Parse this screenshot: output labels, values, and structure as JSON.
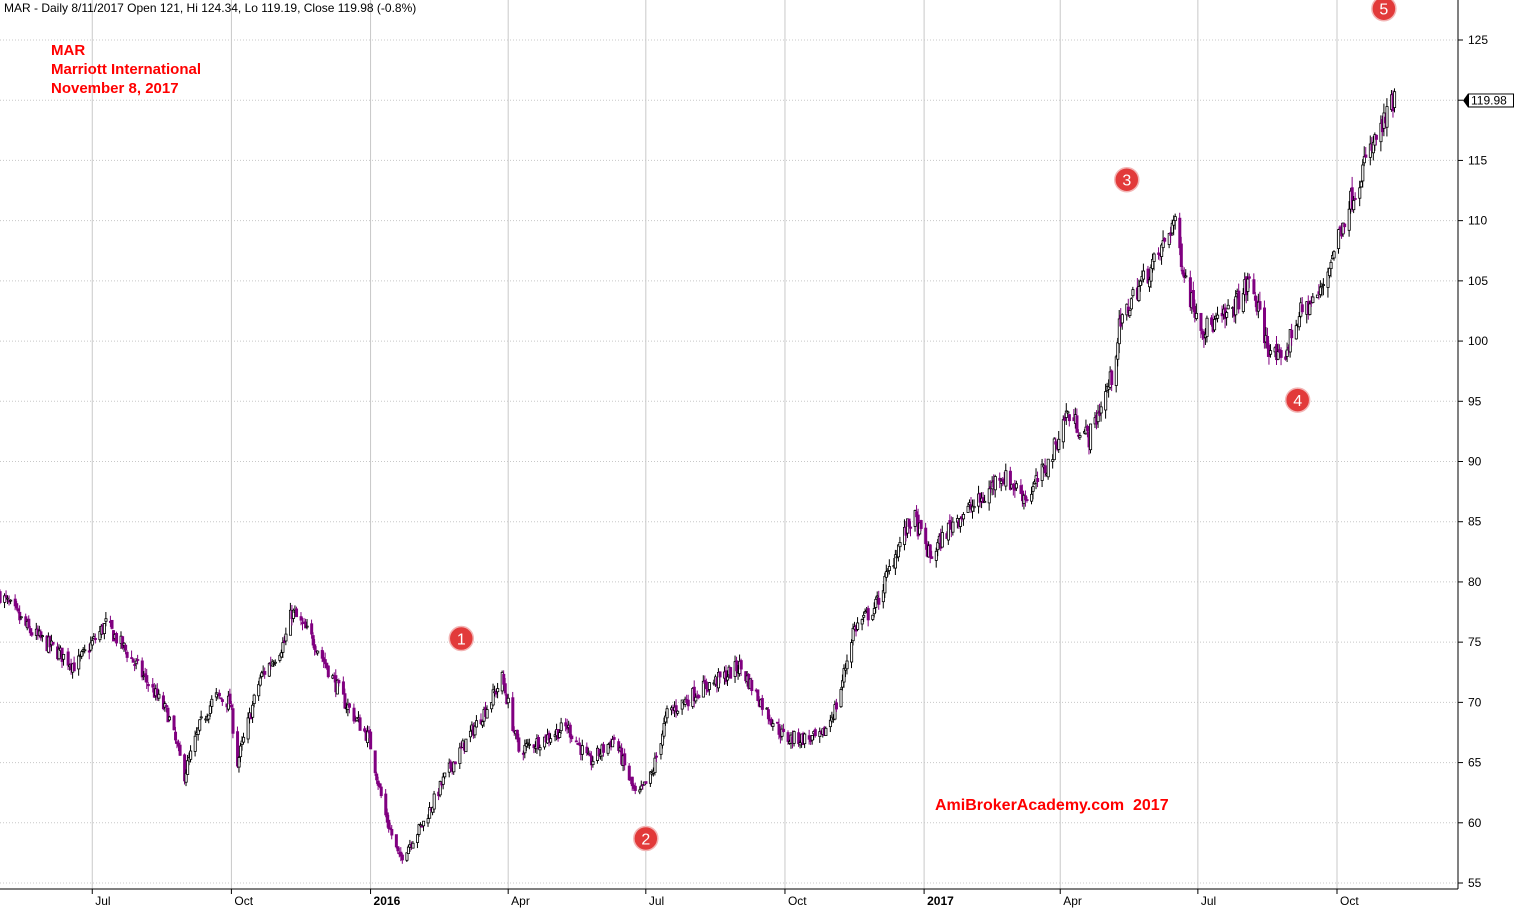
{
  "header": {
    "info_line": "MAR - Daily 8/11/2017 Open 121, Hi 124.34, Lo 119.19, Close 119.98 (-0.8%)"
  },
  "title_block": {
    "symbol": "MAR",
    "company": "Marriott International",
    "date": "November 8, 2017"
  },
  "watermark": "AmiBrokerAcademy.com  2017",
  "colors": {
    "up_bar": "#000000",
    "down_bar": "#800080",
    "grid": "#c8c8c8",
    "marker": "#e23a3a",
    "title_text": "#ff0000"
  },
  "chart_data": {
    "type": "candlestick",
    "symbol": "MAR",
    "last_close": "119.98",
    "ylim": [
      55,
      127
    ],
    "yticks": [
      55,
      60,
      65,
      70,
      75,
      80,
      85,
      90,
      95,
      100,
      105,
      110,
      115,
      120,
      125
    ],
    "x_range": [
      "2015-05-01",
      "2017-12-20"
    ],
    "xticks": [
      {
        "date": "2015-07-01",
        "label": "Jul",
        "bold": false
      },
      {
        "date": "2015-10-01",
        "label": "Oct",
        "bold": false
      },
      {
        "date": "2016-01-01",
        "label": "2016",
        "bold": true
      },
      {
        "date": "2016-04-01",
        "label": "Apr",
        "bold": false
      },
      {
        "date": "2016-07-01",
        "label": "Jul",
        "bold": false
      },
      {
        "date": "2016-10-01",
        "label": "Oct",
        "bold": false
      },
      {
        "date": "2017-01-01",
        "label": "2017",
        "bold": true
      },
      {
        "date": "2017-04-01",
        "label": "Apr",
        "bold": false
      },
      {
        "date": "2017-07-01",
        "label": "Jul",
        "bold": false
      },
      {
        "date": "2017-10-01",
        "label": "Oct",
        "bold": false
      }
    ],
    "grid": true,
    "price_path": [
      [
        "2015-05-01",
        79
      ],
      [
        "2015-05-20",
        76
      ],
      [
        "2015-06-10",
        74
      ],
      [
        "2015-06-20",
        73
      ],
      [
        "2015-07-10",
        76.5
      ],
      [
        "2015-07-25",
        74
      ],
      [
        "2015-08-10",
        71
      ],
      [
        "2015-08-20",
        69
      ],
      [
        "2015-08-31",
        64
      ],
      [
        "2015-09-10",
        68
      ],
      [
        "2015-09-20",
        70.5
      ],
      [
        "2015-09-30",
        70
      ],
      [
        "2015-10-05",
        65
      ],
      [
        "2015-10-20",
        72
      ],
      [
        "2015-11-05",
        75
      ],
      [
        "2015-11-10",
        77.5
      ],
      [
        "2015-11-25",
        75
      ],
      [
        "2015-12-15",
        70
      ],
      [
        "2015-12-31",
        67
      ],
      [
        "2016-01-10",
        61
      ],
      [
        "2016-01-20",
        57
      ],
      [
        "2016-02-05",
        60
      ],
      [
        "2016-02-20",
        64
      ],
      [
        "2016-03-10",
        68
      ],
      [
        "2016-03-20",
        70
      ],
      [
        "2016-03-28",
        72
      ],
      [
        "2016-04-08",
        66
      ],
      [
        "2016-04-25",
        67
      ],
      [
        "2016-05-10",
        68
      ],
      [
        "2016-05-25",
        65
      ],
      [
        "2016-06-10",
        67
      ],
      [
        "2016-06-25",
        62
      ],
      [
        "2016-07-05",
        64
      ],
      [
        "2016-07-15",
        69
      ],
      [
        "2016-08-05",
        71
      ],
      [
        "2016-08-20",
        72
      ],
      [
        "2016-09-01",
        73
      ],
      [
        "2016-09-20",
        69
      ],
      [
        "2016-10-01",
        67
      ],
      [
        "2016-10-25",
        67
      ],
      [
        "2016-11-05",
        70
      ],
      [
        "2016-11-15",
        76
      ],
      [
        "2016-11-30",
        78
      ],
      [
        "2016-12-15",
        83
      ],
      [
        "2016-12-25",
        85.5
      ],
      [
        "2017-01-05",
        82
      ],
      [
        "2017-01-20",
        85
      ],
      [
        "2017-02-10",
        87
      ],
      [
        "2017-02-20",
        89
      ],
      [
        "2017-03-10",
        87
      ],
      [
        "2017-03-25",
        90
      ],
      [
        "2017-04-05",
        94
      ],
      [
        "2017-04-20",
        92
      ],
      [
        "2017-05-05",
        97
      ],
      [
        "2017-05-10",
        101
      ],
      [
        "2017-05-20",
        104
      ],
      [
        "2017-06-05",
        107
      ],
      [
        "2017-06-15",
        110
      ],
      [
        "2017-06-25",
        104
      ],
      [
        "2017-07-05",
        101
      ],
      [
        "2017-07-20",
        102
      ],
      [
        "2017-08-05",
        105
      ],
      [
        "2017-08-15",
        100
      ],
      [
        "2017-08-25",
        98
      ],
      [
        "2017-09-05",
        102
      ],
      [
        "2017-09-20",
        104
      ],
      [
        "2017-10-05",
        110
      ],
      [
        "2017-10-20",
        115
      ],
      [
        "2017-11-01",
        118
      ],
      [
        "2017-11-08",
        120
      ]
    ],
    "annotations": [
      {
        "label": "1",
        "date": "2016-03-01",
        "value": 75.3
      },
      {
        "label": "2",
        "date": "2016-07-01",
        "value": 58.7
      },
      {
        "label": "3",
        "date": "2017-05-15",
        "value": 113.4
      },
      {
        "label": "4",
        "date": "2017-09-05",
        "value": 95.1
      },
      {
        "label": "5",
        "date": "2017-11-01",
        "value": 127.6
      }
    ]
  }
}
